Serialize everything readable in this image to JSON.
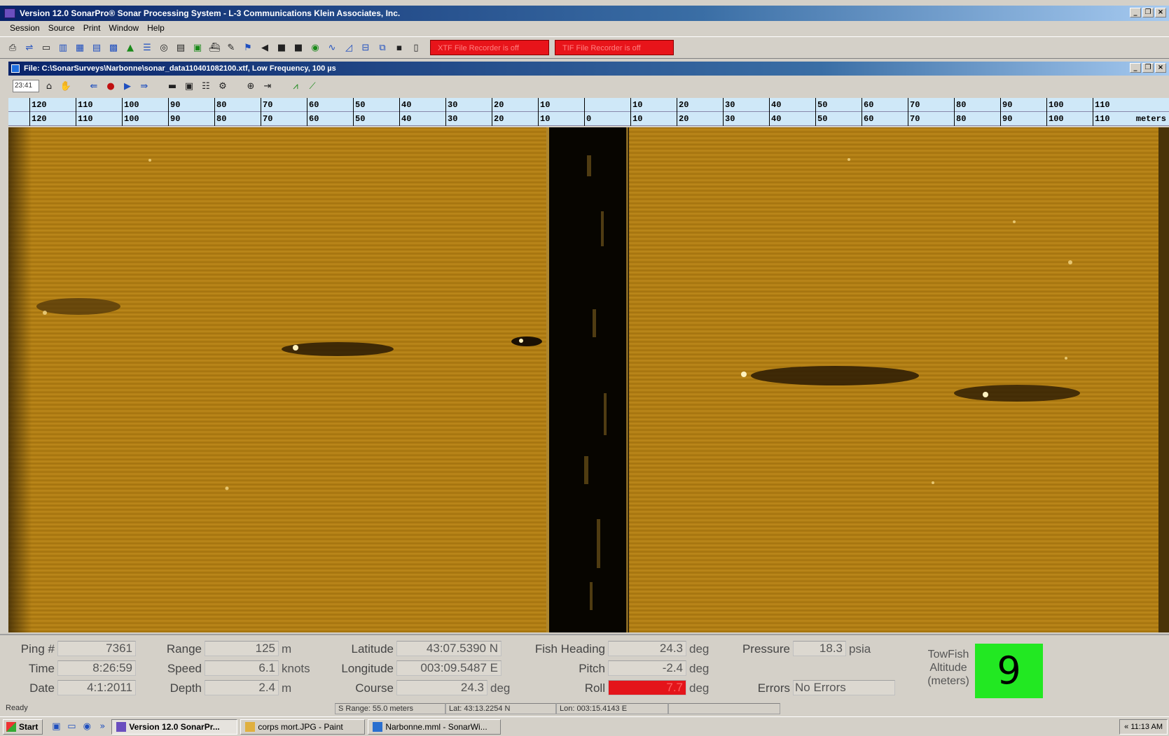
{
  "window": {
    "title": "Version 12.0 SonarPro® Sonar Processing System - L-3 Communications Klein Associates, Inc.",
    "min": "_",
    "max": "❐",
    "close": "×"
  },
  "menu": [
    "Session",
    "Source",
    "Print",
    "Window",
    "Help"
  ],
  "toolbar": {
    "record_xtf": "XTF File Recorder is off",
    "record_tif": "TIF File Recorder is off"
  },
  "child": {
    "title": "File: C:\\SonarSurveys\\Narbonne\\sonar_data110401082100.xtf, Low Frequency, 100 µs",
    "time": "23:41"
  },
  "scale": {
    "top": [
      "120",
      "110",
      "100",
      "90",
      "80",
      "70",
      "60",
      "50",
      "40",
      "30",
      "20",
      "10",
      "",
      "10",
      "20",
      "30",
      "40",
      "50",
      "60",
      "70",
      "80",
      "90",
      "100",
      "110"
    ],
    "bottom": [
      "120",
      "110",
      "100",
      "90",
      "80",
      "70",
      "60",
      "50",
      "40",
      "30",
      "20",
      "10",
      "0",
      "10",
      "20",
      "30",
      "40",
      "50",
      "60",
      "70",
      "80",
      "90",
      "100",
      "110"
    ],
    "unit": "meters"
  },
  "status": {
    "ping_label": "Ping #",
    "ping": "7361",
    "time_label": "Time",
    "time": "8:26:59",
    "date_label": "Date",
    "date": "4:1:2011",
    "range_label": "Range",
    "range": "125",
    "range_unit": "m",
    "speed_label": "Speed",
    "speed": "6.1",
    "speed_unit": "knots",
    "depth_label": "Depth",
    "depth": "2.4",
    "depth_unit": "m",
    "lat_label": "Latitude",
    "lat": "43:07.5390 N",
    "lon_label": "Longitude",
    "lon": "003:09.5487 E",
    "course_label": "Course",
    "course": "24.3",
    "course_unit": "deg",
    "heading_label": "Fish Heading",
    "heading": "24.3",
    "heading_unit": "deg",
    "pitch_label": "Pitch",
    "pitch": "-2.4",
    "pitch_unit": "deg",
    "roll_label": "Roll",
    "roll": "7.7",
    "roll_unit": "deg",
    "pressure_label": "Pressure",
    "pressure": "18.3",
    "pressure_unit": "psia",
    "errors_label": "Errors",
    "errors": "No Errors",
    "altitude_label": "TowFish Altitude (meters)",
    "altitude": "9"
  },
  "statusbar": {
    "ready": "Ready",
    "srange": "S Range: 55.0 meters",
    "lat": "Lat: 43:13.2254 N",
    "lon": "Lon: 003:15.4143 E"
  },
  "taskbar": {
    "start": "Start",
    "quick": "»",
    "tasks": [
      "Version 12.0 SonarPr...",
      "corps mort.JPG - Paint",
      "Narbonne.mml - SonarWi..."
    ],
    "clock": "« 11:13 AM"
  },
  "colors": {
    "sonar": "#b07d14",
    "altitude_bg": "#22e822",
    "record_off": "#e8141a",
    "roll_alarm": "#e4141a"
  }
}
